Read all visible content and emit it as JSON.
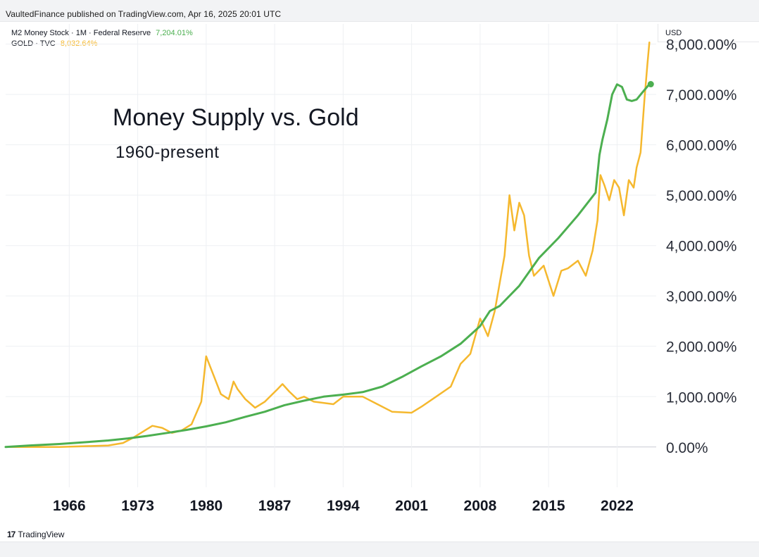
{
  "header": {
    "published_text": "VaultedFinance published on TradingView.com, Apr 16, 2025 20:01 UTC"
  },
  "legend": {
    "m2_name": "M2 Money Stock · 1M · Federal Reserve",
    "m2_value": "7,204.01%",
    "gold_name": "GOLD · TVC",
    "gold_value": "8,032.64%"
  },
  "currency_label": "USD",
  "footer": {
    "logo_mark": "17",
    "brand": "TradingView"
  },
  "colors": {
    "m2": "#4caf50",
    "gold": "#f5b82e",
    "grid": "#eef0f3",
    "zero_line": "#c9ccd3"
  },
  "chart_data": {
    "type": "line",
    "title": "Money Supply vs. Gold",
    "subtitle": "1960-present",
    "xlabel": "",
    "ylabel": "",
    "x_range": [
      1959.5,
      2026
    ],
    "ylim": [
      -800,
      8400
    ],
    "y_ticks": [
      0,
      1000,
      2000,
      3000,
      4000,
      5000,
      6000,
      7000,
      8000
    ],
    "y_tick_labels": [
      "0.00%",
      "1,000.00%",
      "2,000.00%",
      "3,000.00%",
      "4,000.00%",
      "5,000.00%",
      "6,000.00%",
      "7,000.00%",
      "8,000.00%"
    ],
    "x_ticks": [
      1966,
      1973,
      1980,
      1987,
      1994,
      2001,
      2008,
      2015,
      2022
    ],
    "x_tick_labels": [
      "1966",
      "1973",
      "1980",
      "1987",
      "1994",
      "2001",
      "2008",
      "2015",
      "2022"
    ],
    "series": [
      {
        "name": "M2 Money Stock",
        "color": "#4caf50",
        "x": [
          1959.5,
          1962,
          1965,
          1968,
          1970,
          1972,
          1974,
          1976,
          1978,
          1980,
          1982,
          1984,
          1986,
          1988,
          1990,
          1992,
          1994,
          1996,
          1998,
          2000,
          2002,
          2004,
          2006,
          2008,
          2009,
          2010,
          2012,
          2014,
          2016,
          2018,
          2019.8,
          2020.2,
          2020.5,
          2021,
          2021.5,
          2022,
          2022.5,
          2023,
          2023.5,
          2024,
          2024.5,
          2025.3
        ],
        "values": [
          0,
          30,
          60,
          100,
          130,
          170,
          220,
          280,
          340,
          410,
          490,
          600,
          700,
          830,
          920,
          1000,
          1040,
          1090,
          1200,
          1390,
          1600,
          1800,
          2050,
          2400,
          2700,
          2800,
          3200,
          3750,
          4150,
          4600,
          5050,
          5800,
          6100,
          6500,
          7000,
          7200,
          7150,
          6900,
          6870,
          6900,
          7020,
          7204.01
        ]
      },
      {
        "name": "GOLD",
        "color": "#f5b82e",
        "x": [
          1959.5,
          1965,
          1970,
          1971.5,
          1972.5,
          1973.5,
          1974.5,
          1975.5,
          1976.5,
          1977.5,
          1978.5,
          1979.5,
          1980.0,
          1980.3,
          1980.8,
          1981.5,
          1982.3,
          1982.8,
          1983.2,
          1984.0,
          1985.0,
          1986.0,
          1987.3,
          1987.8,
          1988.5,
          1989.3,
          1990.0,
          1991,
          1993,
          1994,
          1996,
          1997.5,
          1999,
          2001,
          2002,
          2003.5,
          2005,
          2006,
          2007,
          2008,
          2008.8,
          2009.5,
          2010.5,
          2011.0,
          2011.5,
          2012,
          2012.5,
          2013,
          2013.5,
          2014.5,
          2015.5,
          2016.3,
          2017,
          2018,
          2018.8,
          2019.5,
          2020.0,
          2020.3,
          2020.7,
          2021.2,
          2021.7,
          2022.2,
          2022.7,
          2023.2,
          2023.7,
          2024.0,
          2024.4,
          2024.8,
          2025.1,
          2025.3
        ],
        "values": [
          0,
          0,
          30,
          80,
          180,
          300,
          420,
          380,
          280,
          330,
          450,
          900,
          1800,
          1650,
          1400,
          1050,
          950,
          1300,
          1150,
          950,
          780,
          900,
          1150,
          1250,
          1100,
          950,
          1000,
          900,
          850,
          1000,
          1000,
          850,
          700,
          680,
          800,
          1000,
          1200,
          1650,
          1850,
          2550,
          2200,
          2700,
          3800,
          5000,
          4300,
          4850,
          4600,
          3800,
          3400,
          3600,
          3000,
          3500,
          3550,
          3700,
          3400,
          3900,
          4500,
          5400,
          5200,
          4900,
          5300,
          5150,
          4600,
          5300,
          5150,
          5550,
          5850,
          6900,
          7600,
          8032.64
        ]
      }
    ]
  }
}
